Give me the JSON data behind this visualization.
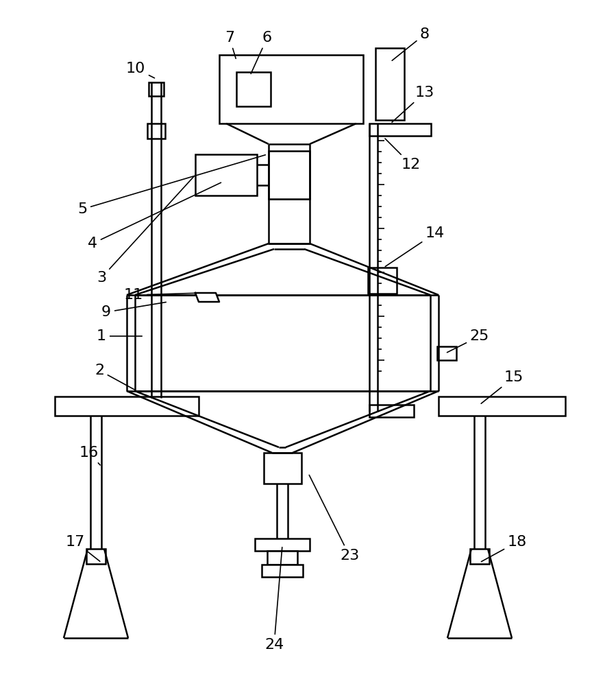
{
  "bg_color": "#ffffff",
  "lc": "#000000",
  "lw": 1.8,
  "lw_thin": 1.2,
  "label_fs": 16
}
